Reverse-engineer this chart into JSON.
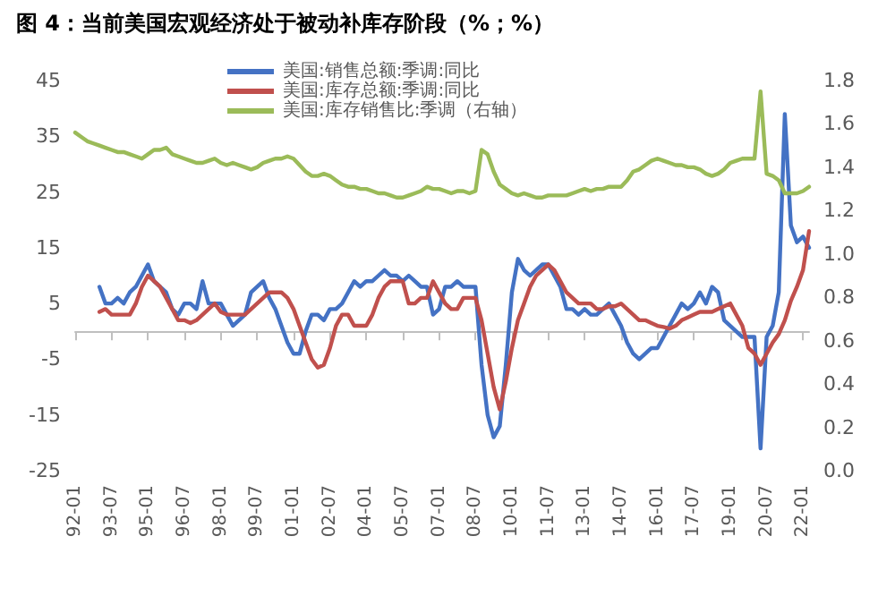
{
  "chart_data": {
    "type": "line",
    "title": "图 4：当前美国宏观经济处于被动补库存阶段（%；%）",
    "categories": [
      "92-01",
      null,
      null,
      null,
      null,
      null,
      "93-07",
      null,
      null,
      null,
      null,
      null,
      "95-01",
      null,
      null,
      null,
      null,
      null,
      "96-07",
      null,
      null,
      null,
      null,
      null,
      "98-01",
      null,
      null,
      null,
      null,
      null,
      "99-07",
      null,
      null,
      null,
      null,
      null,
      "01-01",
      null,
      null,
      null,
      null,
      null,
      "02-07",
      null,
      null,
      null,
      null,
      null,
      "04-01",
      null,
      null,
      null,
      null,
      null,
      "05-07",
      null,
      null,
      null,
      null,
      null,
      "07-01",
      null,
      null,
      null,
      null,
      null,
      "08-07",
      null,
      null,
      null,
      null,
      null,
      "10-01",
      null,
      null,
      null,
      null,
      null,
      "11-07",
      null,
      null,
      null,
      null,
      null,
      "13-01",
      null,
      null,
      null,
      null,
      null,
      "14-07",
      null,
      null,
      null,
      null,
      null,
      "16-01",
      null,
      null,
      null,
      null,
      null,
      "17-07",
      null,
      null,
      null,
      null,
      null,
      "19-01",
      null,
      null,
      null,
      null,
      null,
      "20-07",
      null,
      null,
      null,
      null,
      null,
      "22-01",
      null
    ],
    "series": [
      {
        "name": "美国:销售总额:季调:同比",
        "color": "#4472c4",
        "values": [
          null,
          null,
          null,
          null,
          8,
          5,
          5,
          6,
          5,
          7,
          8,
          10,
          12,
          9,
          8,
          7,
          4,
          3,
          5,
          5,
          4,
          9,
          5,
          5,
          5,
          3,
          1,
          2,
          3,
          7,
          8,
          9,
          6,
          4,
          1,
          -2,
          -4,
          -4,
          0,
          3,
          3,
          2,
          4,
          4,
          5,
          7,
          9,
          8,
          9,
          9,
          10,
          11,
          10,
          10,
          9,
          10,
          9,
          8,
          8,
          3,
          4,
          8,
          8,
          9,
          8,
          8,
          8,
          -6,
          -15,
          -19,
          -17,
          -6,
          7,
          13,
          11,
          10,
          11,
          12,
          12,
          10,
          8,
          4,
          4,
          3,
          4,
          3,
          3,
          4,
          5,
          3,
          1,
          -2,
          -4,
          -5,
          -4,
          -3,
          -3,
          -1,
          1,
          3,
          5,
          4,
          5,
          7,
          5,
          8,
          7,
          2,
          1,
          0,
          -1,
          -1,
          -1,
          -21,
          -1,
          1,
          7,
          39,
          19,
          16,
          17,
          15
        ]
      },
      {
        "name": "美国:库存总额:季调:同比",
        "color": "#c0504d",
        "values": [
          null,
          null,
          null,
          null,
          3.5,
          4,
          3,
          3,
          3,
          3,
          5,
          8,
          10,
          9,
          8,
          6,
          4,
          2,
          2,
          1.5,
          2,
          3,
          4,
          5,
          3.5,
          3,
          3,
          3,
          3,
          4,
          5,
          6,
          7,
          7,
          7,
          6,
          4,
          1,
          -2,
          -5,
          -6.5,
          -6,
          -3,
          1,
          3,
          3,
          1,
          1,
          1,
          3,
          6,
          8,
          9,
          9,
          9,
          5,
          5,
          6,
          6,
          9,
          7,
          5,
          4,
          4,
          6,
          6,
          6,
          2,
          -4,
          -10,
          -14,
          -9,
          -3,
          2,
          5,
          8,
          10,
          11,
          12,
          11,
          9,
          7,
          6,
          5,
          5,
          5,
          4,
          4,
          4.5,
          4.5,
          5,
          4,
          3,
          2,
          2,
          1.5,
          1,
          0.8,
          0.5,
          1,
          2,
          2.5,
          3,
          3.5,
          3.5,
          3.5,
          4,
          4.5,
          5,
          3,
          1,
          -3,
          -4,
          -6,
          -4,
          -2,
          -0.5,
          2,
          5.5,
          8,
          11,
          18
        ]
      },
      {
        "name": "美国:库存销售比:季调（右轴）",
        "color": "#9bbb59",
        "axis": "y2",
        "values": [
          1.56,
          1.54,
          1.52,
          1.51,
          1.5,
          1.49,
          1.48,
          1.47,
          1.47,
          1.46,
          1.45,
          1.44,
          1.46,
          1.48,
          1.48,
          1.49,
          1.46,
          1.45,
          1.44,
          1.43,
          1.42,
          1.42,
          1.43,
          1.44,
          1.42,
          1.41,
          1.42,
          1.41,
          1.4,
          1.39,
          1.4,
          1.42,
          1.43,
          1.44,
          1.44,
          1.45,
          1.44,
          1.41,
          1.38,
          1.36,
          1.36,
          1.37,
          1.36,
          1.34,
          1.32,
          1.31,
          1.31,
          1.3,
          1.3,
          1.29,
          1.28,
          1.28,
          1.27,
          1.26,
          1.26,
          1.27,
          1.28,
          1.29,
          1.31,
          1.3,
          1.3,
          1.29,
          1.28,
          1.29,
          1.29,
          1.28,
          1.29,
          1.48,
          1.46,
          1.38,
          1.32,
          1.3,
          1.28,
          1.27,
          1.28,
          1.27,
          1.26,
          1.26,
          1.27,
          1.27,
          1.27,
          1.27,
          1.28,
          1.29,
          1.3,
          1.29,
          1.3,
          1.3,
          1.31,
          1.31,
          1.31,
          1.34,
          1.38,
          1.39,
          1.41,
          1.43,
          1.44,
          1.43,
          1.42,
          1.41,
          1.41,
          1.4,
          1.4,
          1.39,
          1.37,
          1.36,
          1.37,
          1.39,
          1.42,
          1.43,
          1.44,
          1.44,
          1.44,
          1.75,
          1.37,
          1.36,
          1.34,
          1.28,
          1.28,
          1.28,
          1.29,
          1.31
        ]
      }
    ],
    "ylim": [
      -25,
      45
    ],
    "yticks": [
      -25,
      -15,
      -5,
      5,
      15,
      25,
      35,
      45
    ],
    "y2lim": [
      0,
      1.8
    ],
    "y2ticks": [
      {
        "value": 0,
        "label": "0.0"
      },
      {
        "value": 0.2,
        "label": "0.2"
      },
      {
        "value": 0.4,
        "label": "0.4"
      },
      {
        "value": 0.6,
        "label": "0.6"
      },
      {
        "value": 0.8,
        "label": "0.8"
      },
      {
        "value": 1,
        "label": "1.0"
      },
      {
        "value": 1.2,
        "label": "1.2"
      },
      {
        "value": 1.4,
        "label": "1.4"
      },
      {
        "value": 1.6,
        "label": "1.6"
      },
      {
        "value": 1.8,
        "label": "1.8"
      }
    ],
    "grid": false,
    "legend": "top",
    "marker": "none",
    "line_style": "solid"
  }
}
